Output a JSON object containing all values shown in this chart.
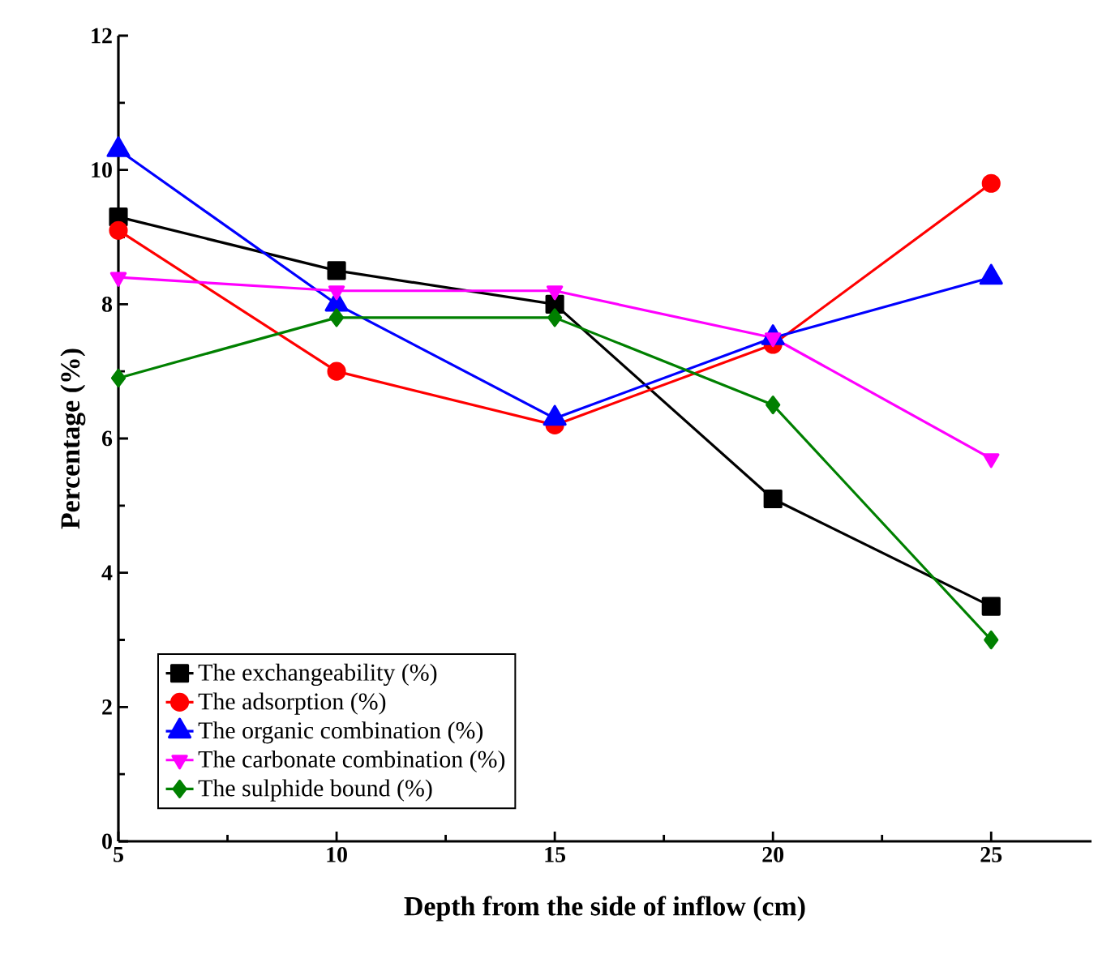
{
  "chart_data": {
    "type": "line",
    "xlabel": "Depth from the side of inflow (cm)",
    "ylabel": "Percentage (%)",
    "x": [
      5,
      10,
      15,
      20,
      25
    ],
    "xlim": [
      5,
      27.3
    ],
    "xticks": [
      5,
      10,
      15,
      20,
      25
    ],
    "ylim": [
      0,
      12
    ],
    "yticks": [
      0,
      2,
      4,
      6,
      8,
      10,
      12
    ],
    "legend": "bottom left",
    "grid": false,
    "line_style": "solid",
    "series": [
      {
        "name": "The exchangeability (%)",
        "color": "#000000",
        "marker": "square",
        "values": [
          9.3,
          8.5,
          8.0,
          5.1,
          3.5
        ]
      },
      {
        "name": "The adsorption (%)",
        "color": "#ff0000",
        "marker": "circle",
        "values": [
          9.1,
          7.0,
          6.2,
          7.4,
          9.8
        ]
      },
      {
        "name": "The organic combination (%)",
        "color": "#0000ff",
        "marker": "triangle",
        "values": [
          10.3,
          8.0,
          6.3,
          7.5,
          8.4
        ]
      },
      {
        "name": "The carbonate combination (%)",
        "color": "#ff00ff",
        "marker": "triangle-down",
        "values": [
          8.4,
          8.2,
          8.2,
          7.5,
          5.7
        ]
      },
      {
        "name": "The sulphide bound (%)",
        "color": "#008000",
        "marker": "diamond",
        "values": [
          6.9,
          7.8,
          7.8,
          6.5,
          3.0
        ]
      }
    ]
  }
}
